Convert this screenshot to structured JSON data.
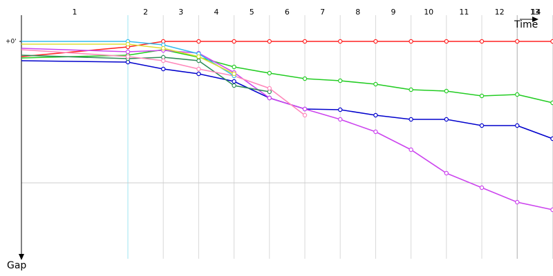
{
  "chart_data": {
    "type": "line",
    "x_label": "Time",
    "y_label": "Gap",
    "x": [
      0,
      1,
      2,
      3,
      4,
      5,
      6,
      7,
      8,
      9,
      10,
      11,
      12,
      13
    ],
    "lap_labels": [
      "1",
      "2",
      "3",
      "4",
      "5",
      "6",
      "7",
      "8",
      "9",
      "10",
      "11",
      "12",
      "13",
      "14"
    ],
    "ylim": [
      0,
      315
    ],
    "yticks": [
      {
        "value": 0,
        "label": "+0'"
      }
    ],
    "ygrid": [
      205
    ],
    "series": [
      {
        "color": "#ff2020",
        "values": [
          22,
          8,
          0,
          0,
          0,
          0,
          0,
          0,
          0,
          0,
          0,
          0,
          0,
          0
        ]
      },
      {
        "color": "#22cc22",
        "values": [
          24,
          20,
          12,
          23,
          37,
          46,
          54,
          57,
          62,
          70,
          72,
          79,
          77,
          89
        ]
      },
      {
        "color": "#0000cc",
        "values": [
          28,
          30,
          40,
          47,
          58,
          82,
          98,
          99,
          107,
          113,
          113,
          122,
          122,
          141
        ]
      },
      {
        "color": "#cc44ee",
        "values": [
          10,
          15,
          13,
          17,
          45,
          82,
          98,
          113,
          131,
          157,
          191,
          212,
          233,
          244
        ]
      },
      {
        "color": "#2e8b57",
        "values": [
          20,
          25,
          23,
          28,
          64,
          73,
          null,
          null,
          null,
          null,
          null,
          null,
          null,
          null
        ]
      },
      {
        "color": "#ff88bb",
        "values": [
          12,
          22,
          28,
          40,
          50,
          68,
          107,
          null,
          null,
          null,
          null,
          null,
          null,
          null
        ]
      },
      {
        "color": "#33bbee",
        "values": [
          0,
          0,
          5,
          18,
          50,
          null,
          null,
          null,
          null,
          null,
          null,
          null,
          null,
          null
        ]
      },
      {
        "color": "#dddd33",
        "values": [
          4,
          4,
          10,
          22,
          47,
          null,
          null,
          null,
          null,
          null,
          null,
          null,
          null,
          null
        ]
      }
    ]
  }
}
